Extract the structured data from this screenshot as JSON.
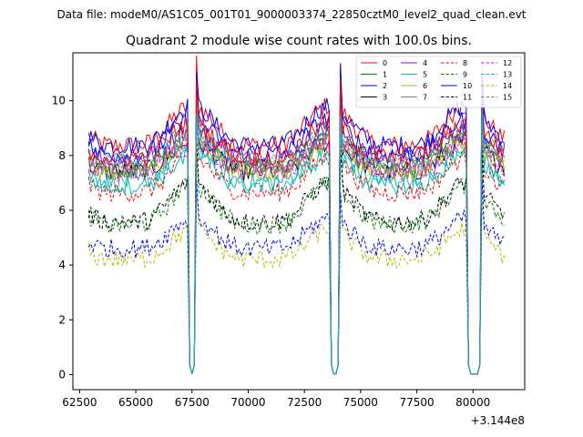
{
  "figure": {
    "suptitle": "Data file: modeM0/AS1C05_001T01_9000003374_22850cztM0_level2_quad_clean.evt",
    "title": "Quadrant 2 module wise count rates with 100.0s bins.",
    "x_offset_label": "+3.144e8"
  },
  "chart_data": {
    "type": "line",
    "title": "Quadrant 2 module wise count rates with 100.0s bins.",
    "xlabel": "",
    "ylabel": "",
    "x_offset": 314400000,
    "xlim": [
      62200,
      82300
    ],
    "ylim": [
      -0.55,
      11.75
    ],
    "x_ticks": [
      62500,
      65000,
      67500,
      70000,
      72500,
      75000,
      77500,
      80000
    ],
    "x_tick_labels": [
      "62500",
      "65000",
      "67500",
      "70000",
      "72500",
      "75000",
      "77500",
      "80000"
    ],
    "y_ticks": [
      0,
      2,
      4,
      6,
      8,
      10
    ],
    "y_tick_labels": [
      "0",
      "2",
      "4",
      "6",
      "8",
      "10"
    ],
    "x_start": 62900,
    "x_step": 100,
    "n_points": 186,
    "gaps": [
      [
        67400,
        67650
      ],
      [
        73700,
        74050
      ],
      [
        79800,
        80350
      ]
    ],
    "legend_position": "upper right",
    "series": [
      {
        "name": "0",
        "color": "#ff0000",
        "dash": "solid",
        "base": 8.9,
        "amp": 0.8
      },
      {
        "name": "1",
        "color": "#008000",
        "dash": "solid",
        "base": 8.0,
        "amp": 0.7
      },
      {
        "name": "2",
        "color": "#0000ff",
        "dash": "solid",
        "base": 8.9,
        "amp": 0.8
      },
      {
        "name": "3",
        "color": "#000000",
        "dash": "solid",
        "base": 7.8,
        "amp": 0.6
      },
      {
        "name": "4",
        "color": "#9400d3",
        "dash": "solid",
        "base": 8.3,
        "amp": 0.6
      },
      {
        "name": "5",
        "color": "#20b2aa",
        "dash": "solid",
        "base": 7.5,
        "amp": 0.7
      },
      {
        "name": "6",
        "color": "#b8b800",
        "dash": "solid",
        "base": 7.8,
        "amp": 0.6
      },
      {
        "name": "7",
        "color": "#808080",
        "dash": "solid",
        "base": 7.9,
        "amp": 0.6
      },
      {
        "name": "8",
        "color": "#ff0000",
        "dash": "dashed",
        "base": 7.1,
        "amp": 0.7
      },
      {
        "name": "9",
        "color": "#008000",
        "dash": "dashed",
        "base": 6.0,
        "amp": 0.8
      },
      {
        "name": "10",
        "color": "#0000ff",
        "dash": "solid",
        "base": 8.5,
        "amp": 0.7
      },
      {
        "name": "11",
        "color": "#000000",
        "dash": "dashed",
        "base": 6.1,
        "amp": 0.8
      },
      {
        "name": "12",
        "color": "#ff00ff",
        "dash": "dashed",
        "base": 7.8,
        "amp": 0.6
      },
      {
        "name": "13",
        "color": "#00bfbf",
        "dash": "dashed",
        "base": 8.2,
        "amp": 0.6
      },
      {
        "name": "14",
        "color": "#b8b800",
        "dash": "dashed",
        "base": 4.6,
        "amp": 0.6
      },
      {
        "name": "15",
        "color": "#808080",
        "dash": "dashed",
        "base": 8.0,
        "amp": 0.6
      }
    ],
    "extra_series": [
      {
        "name": "",
        "color": "#0000ff",
        "dash": "dashed",
        "base": 5.0,
        "amp": 0.6
      },
      {
        "name": "",
        "color": "#ff0000",
        "dash": "solid",
        "base": 8.4,
        "amp": 0.7
      },
      {
        "name": "",
        "color": "#00bfbf",
        "dash": "solid",
        "base": 7.3,
        "amp": 0.6
      }
    ]
  }
}
